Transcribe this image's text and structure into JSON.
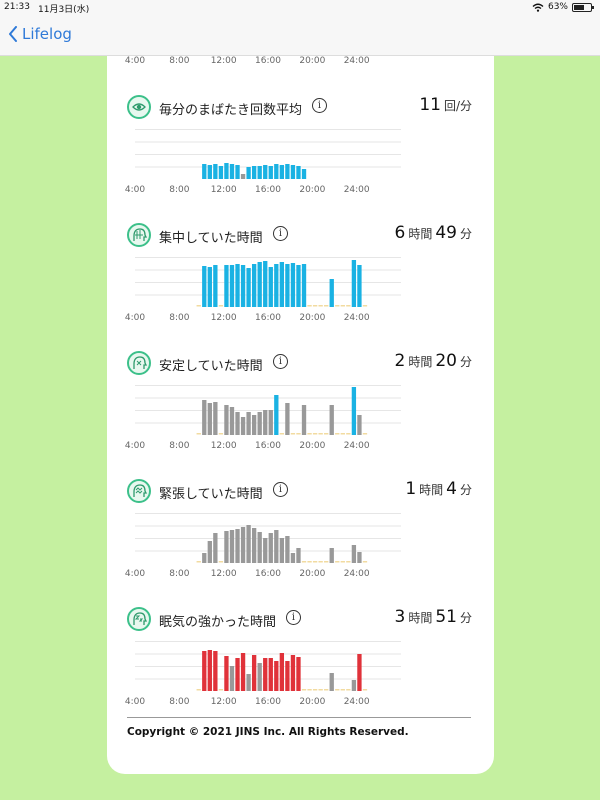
{
  "status": {
    "time": "21:33",
    "date": "11月3日(水)",
    "battery": "63%",
    "battery_level": 0.63
  },
  "nav": {
    "back_label": "Lifelog"
  },
  "axis_labels": [
    "4:00",
    "8:00",
    "12:00",
    "16:00",
    "20:00",
    "24:00"
  ],
  "colors": {
    "blue": "#1ab2e3",
    "gray": "#999999",
    "red": "#e0323a",
    "empty": "#f2dba0",
    "accent": "#3cc08a"
  },
  "sections": [
    {
      "title": "毎分のまばたき回数平均",
      "icon": "eye-icon",
      "value": [
        {
          "n": "11",
          "u": "回/分"
        }
      ]
    },
    {
      "title": "集中していた時間",
      "icon": "focus-head-icon",
      "value": [
        {
          "n": "6",
          "u": "時間"
        },
        {
          "n": "49",
          "u": "分"
        }
      ]
    },
    {
      "title": "安定していた時間",
      "icon": "calm-head-icon",
      "value": [
        {
          "n": "2",
          "u": "時間"
        },
        {
          "n": "20",
          "u": "分"
        }
      ]
    },
    {
      "title": "緊張していた時間",
      "icon": "tense-head-icon",
      "value": [
        {
          "n": "1",
          "u": "時間"
        },
        {
          "n": "4",
          "u": "分"
        }
      ]
    },
    {
      "title": "眠気の強かった時間",
      "icon": "sleepy-head-icon",
      "value": [
        {
          "n": "3",
          "u": "時間"
        },
        {
          "n": "51",
          "u": "分"
        }
      ]
    }
  ],
  "chart_data": [
    {
      "type": "bar",
      "x_range": [
        4,
        28
      ],
      "x_step": 0.5,
      "y_range": [
        0,
        1
      ],
      "bars": [
        [
          10.0,
          0.3,
          "blue"
        ],
        [
          10.5,
          0.28,
          "blue"
        ],
        [
          11.0,
          0.3,
          "blue"
        ],
        [
          11.5,
          0.26,
          "blue"
        ],
        [
          12.0,
          0.32,
          "blue"
        ],
        [
          12.5,
          0.3,
          "blue"
        ],
        [
          13.0,
          0.28,
          "blue"
        ],
        [
          13.5,
          0.1,
          "gray"
        ],
        [
          14.0,
          0.24,
          "blue"
        ],
        [
          14.5,
          0.26,
          "blue"
        ],
        [
          15.0,
          0.26,
          "blue"
        ],
        [
          15.5,
          0.28,
          "blue"
        ],
        [
          16.0,
          0.26,
          "blue"
        ],
        [
          16.5,
          0.3,
          "blue"
        ],
        [
          17.0,
          0.28,
          "blue"
        ],
        [
          17.5,
          0.3,
          "blue"
        ],
        [
          18.0,
          0.28,
          "blue"
        ],
        [
          18.5,
          0.26,
          "blue"
        ],
        [
          19.0,
          0.2,
          "blue"
        ]
      ]
    },
    {
      "type": "bar",
      "x_range": [
        4,
        28
      ],
      "x_step": 0.5,
      "y_range": [
        0,
        1
      ],
      "bars": [
        [
          10.0,
          0.82,
          "blue"
        ],
        [
          10.5,
          0.8,
          "blue"
        ],
        [
          11.0,
          0.84,
          "blue"
        ],
        [
          12.0,
          0.84,
          "blue"
        ],
        [
          12.5,
          0.84,
          "blue"
        ],
        [
          13.0,
          0.86,
          "blue"
        ],
        [
          13.5,
          0.84,
          "blue"
        ],
        [
          14.0,
          0.78,
          "blue"
        ],
        [
          14.5,
          0.86,
          "blue"
        ],
        [
          15.0,
          0.9,
          "blue"
        ],
        [
          15.5,
          0.92,
          "blue"
        ],
        [
          16.0,
          0.8,
          "blue"
        ],
        [
          16.5,
          0.86,
          "blue"
        ],
        [
          17.0,
          0.9,
          "blue"
        ],
        [
          17.5,
          0.86,
          "blue"
        ],
        [
          18.0,
          0.88,
          "blue"
        ],
        [
          18.5,
          0.84,
          "blue"
        ],
        [
          19.0,
          0.86,
          "blue"
        ],
        [
          21.5,
          0.56,
          "blue"
        ],
        [
          23.5,
          0.94,
          "blue"
        ],
        [
          24.0,
          0.84,
          "blue"
        ]
      ]
    },
    {
      "type": "bar",
      "x_range": [
        4,
        28
      ],
      "x_step": 0.5,
      "y_range": [
        0,
        1
      ],
      "bars": [
        [
          10.0,
          0.7,
          "gray"
        ],
        [
          10.5,
          0.64,
          "gray"
        ],
        [
          11.0,
          0.66,
          "gray"
        ],
        [
          12.0,
          0.6,
          "gray"
        ],
        [
          12.5,
          0.56,
          "gray"
        ],
        [
          13.0,
          0.46,
          "gray"
        ],
        [
          13.5,
          0.36,
          "gray"
        ],
        [
          14.0,
          0.46,
          "gray"
        ],
        [
          14.5,
          0.4,
          "gray"
        ],
        [
          15.0,
          0.46,
          "gray"
        ],
        [
          15.5,
          0.5,
          "gray"
        ],
        [
          16.0,
          0.5,
          "gray"
        ],
        [
          16.5,
          0.8,
          "blue"
        ],
        [
          17.5,
          0.64,
          "gray"
        ],
        [
          19.0,
          0.6,
          "gray"
        ],
        [
          21.5,
          0.6,
          "gray"
        ],
        [
          23.5,
          0.96,
          "blue"
        ],
        [
          24.0,
          0.4,
          "gray"
        ]
      ]
    },
    {
      "type": "bar",
      "x_range": [
        4,
        28
      ],
      "x_step": 0.5,
      "y_range": [
        0,
        1
      ],
      "bars": [
        [
          10.0,
          0.2,
          "gray"
        ],
        [
          10.5,
          0.44,
          "gray"
        ],
        [
          11.0,
          0.6,
          "gray"
        ],
        [
          12.0,
          0.64,
          "gray"
        ],
        [
          12.5,
          0.66,
          "gray"
        ],
        [
          13.0,
          0.68,
          "gray"
        ],
        [
          13.5,
          0.72,
          "gray"
        ],
        [
          14.0,
          0.76,
          "gray"
        ],
        [
          14.5,
          0.7,
          "gray"
        ],
        [
          15.0,
          0.62,
          "gray"
        ],
        [
          15.5,
          0.5,
          "gray"
        ],
        [
          16.0,
          0.6,
          "gray"
        ],
        [
          16.5,
          0.66,
          "gray"
        ],
        [
          17.0,
          0.5,
          "gray"
        ],
        [
          17.5,
          0.54,
          "gray"
        ],
        [
          18.0,
          0.2,
          "gray"
        ],
        [
          18.5,
          0.3,
          "gray"
        ],
        [
          21.5,
          0.3,
          "gray"
        ],
        [
          23.5,
          0.36,
          "gray"
        ],
        [
          24.0,
          0.22,
          "gray"
        ]
      ]
    },
    {
      "type": "bar",
      "x_range": [
        4,
        28
      ],
      "x_step": 0.5,
      "y_range": [
        0,
        1
      ],
      "bars": [
        [
          10.0,
          0.8,
          "red"
        ],
        [
          10.5,
          0.82,
          "red"
        ],
        [
          11.0,
          0.8,
          "red"
        ],
        [
          12.0,
          0.7,
          "red"
        ],
        [
          12.5,
          0.5,
          "gray"
        ],
        [
          13.0,
          0.66,
          "red"
        ],
        [
          13.5,
          0.76,
          "red"
        ],
        [
          14.0,
          0.34,
          "gray"
        ],
        [
          14.5,
          0.72,
          "red"
        ],
        [
          15.0,
          0.56,
          "gray"
        ],
        [
          15.5,
          0.66,
          "red"
        ],
        [
          16.0,
          0.66,
          "red"
        ],
        [
          16.5,
          0.6,
          "red"
        ],
        [
          17.0,
          0.76,
          "red"
        ],
        [
          17.5,
          0.6,
          "red"
        ],
        [
          18.0,
          0.72,
          "red"
        ],
        [
          18.5,
          0.68,
          "red"
        ],
        [
          21.5,
          0.36,
          "gray"
        ],
        [
          23.5,
          0.22,
          "gray"
        ],
        [
          24.0,
          0.74,
          "red"
        ]
      ]
    }
  ],
  "copyright": "Copyright © 2021 JINS Inc. All Rights Reserved."
}
